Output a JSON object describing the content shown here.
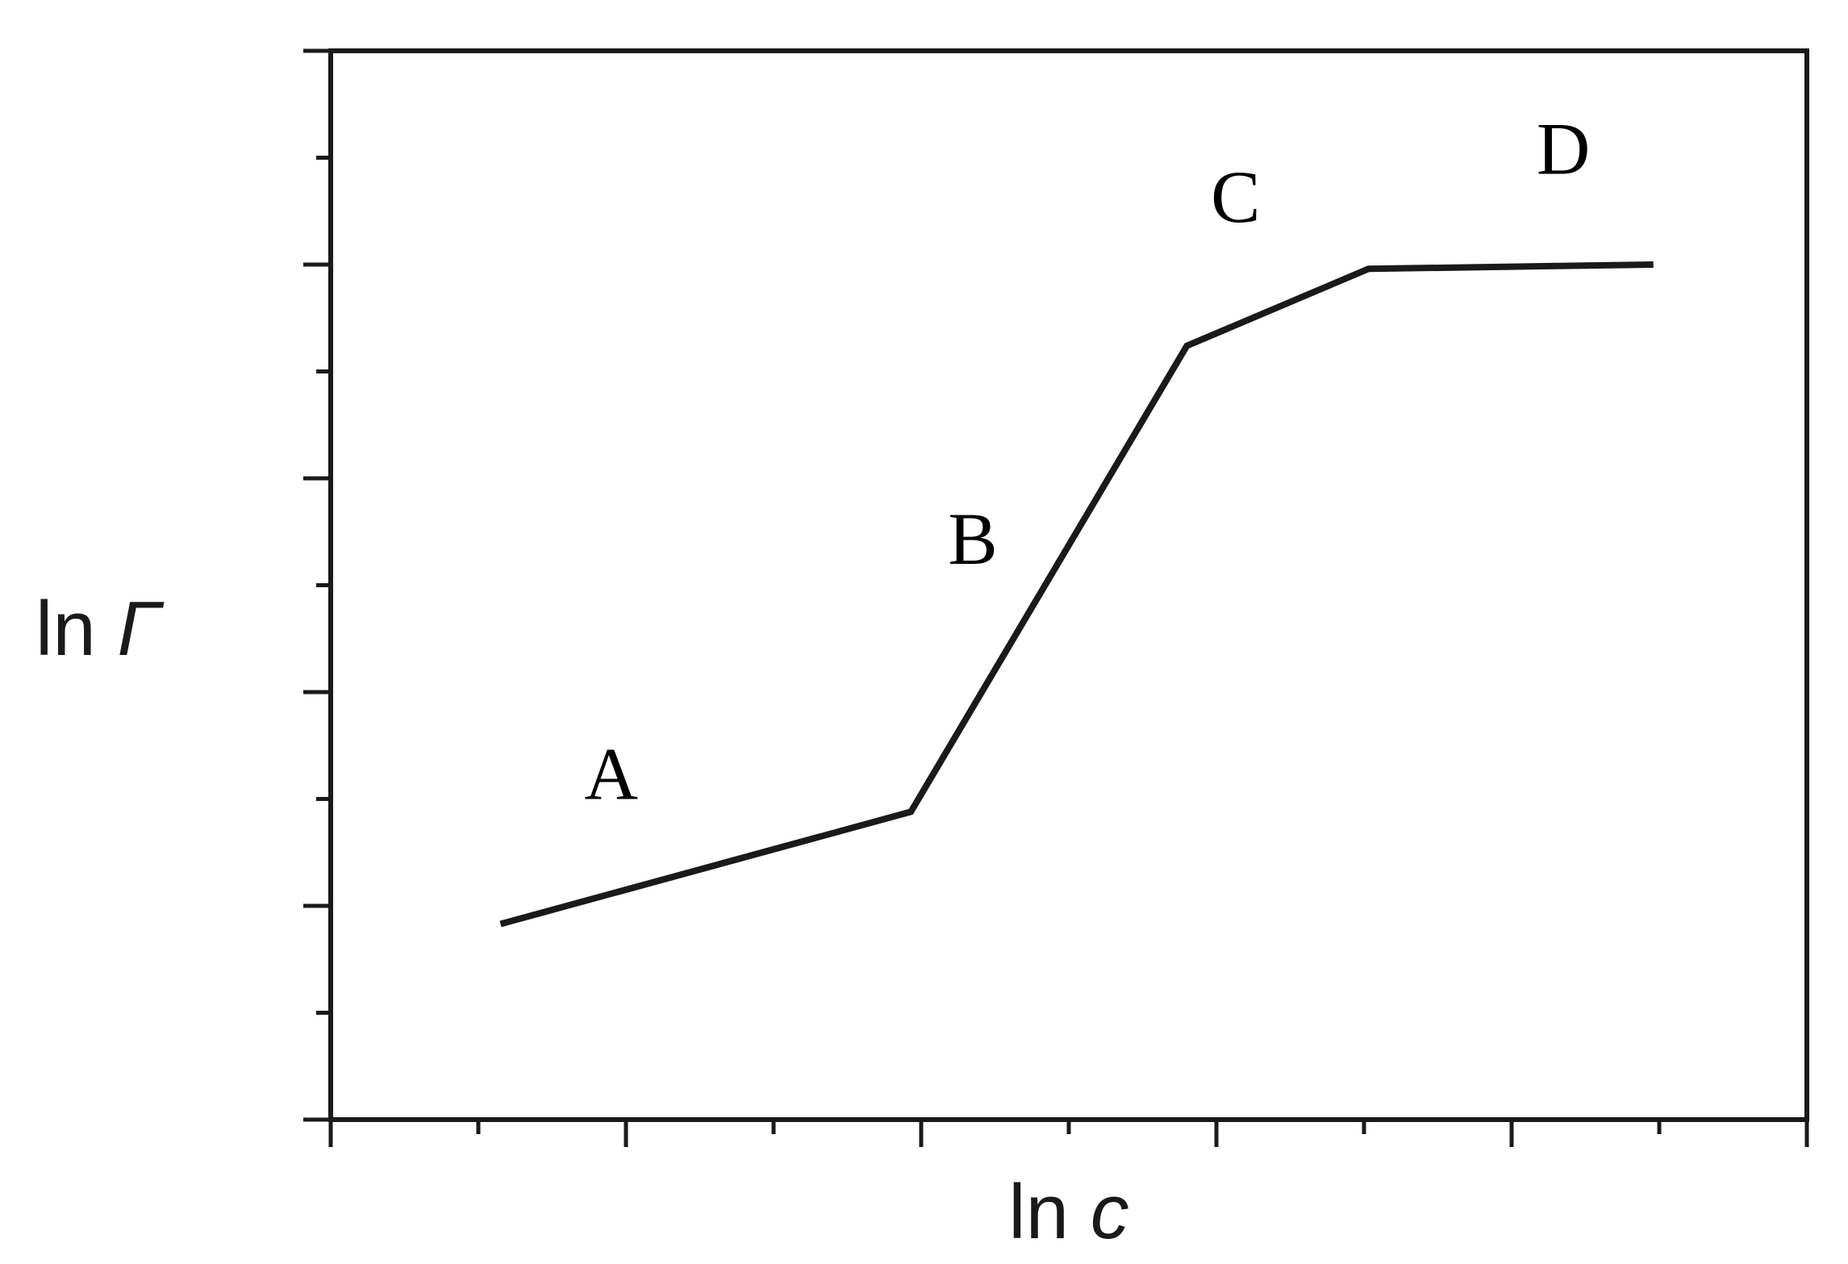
{
  "chart_data": {
    "type": "line",
    "title": "",
    "xlabel": {
      "prefix": "ln ",
      "symbol": "c"
    },
    "ylabel": {
      "prefix": "ln ",
      "symbol": "Γ"
    },
    "xlim": [
      0,
      1
    ],
    "ylim": [
      0,
      1
    ],
    "x_ticks": {
      "major": 5,
      "minor": 5
    },
    "y_ticks": {
      "major": 5,
      "minor": 5
    },
    "tick_labels_shown": false,
    "grid": false,
    "series": [
      {
        "x": [
          0.115,
          0.393,
          0.58,
          0.703,
          0.896
        ],
        "y": [
          0.183,
          0.288,
          0.724,
          0.796,
          0.8
        ]
      }
    ],
    "annotations": [
      {
        "text": "A",
        "x": 0.19,
        "y": 0.3
      },
      {
        "text": "B",
        "x": 0.435,
        "y": 0.52
      },
      {
        "text": "C",
        "x": 0.613,
        "y": 0.84
      },
      {
        "text": "D",
        "x": 0.835,
        "y": 0.885
      }
    ]
  }
}
